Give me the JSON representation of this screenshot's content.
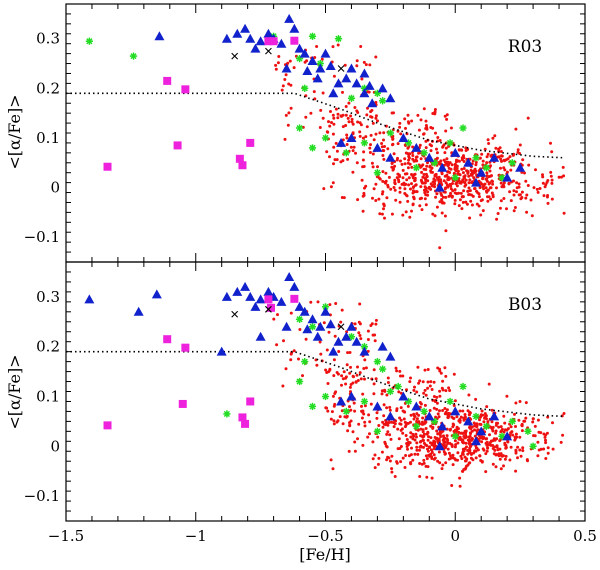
{
  "chart_data": {
    "type": "scatter",
    "xlabel": "[Fe/H]",
    "xlim": [
      -1.5,
      0.5
    ],
    "x_ticks": [
      -1.5,
      -1,
      -0.5,
      0,
      0.5
    ],
    "x_tick_labels": [
      "−1.5",
      "−1",
      "−0.5",
      "0",
      "0.5"
    ],
    "colors": {
      "red": "#ee1111",
      "blue": "#1122cc",
      "green": "#22dd22",
      "magenta": "#ee22dd",
      "black": "#000000"
    },
    "panels": [
      {
        "label": "R03",
        "ylabel": "<[α/Fe]>",
        "ylim": [
          -0.15,
          0.37
        ],
        "y_ticks": [
          -0.1,
          0,
          0.1,
          0.2,
          0.3
        ],
        "y_tick_labels": [
          "−0.1",
          "0",
          "0.1",
          "0.2",
          "0.3"
        ],
        "dotted_line": {
          "x": [
            -1.5,
            -0.62,
            -0.45,
            -0.3,
            -0.1,
            0.1,
            0.3,
            0.42
          ],
          "y": [
            0.19,
            0.19,
            0.16,
            0.13,
            0.095,
            0.075,
            0.063,
            0.06
          ]
        },
        "triangles": [
          [
            -1.14,
            0.305
          ],
          [
            -0.88,
            0.3
          ],
          [
            -0.84,
            0.31
          ],
          [
            -0.81,
            0.32
          ],
          [
            -0.79,
            0.3
          ],
          [
            -0.77,
            0.28
          ],
          [
            -0.75,
            0.295
          ],
          [
            -0.72,
            0.31
          ],
          [
            -0.7,
            0.3
          ],
          [
            -0.67,
            0.29
          ],
          [
            -0.64,
            0.34
          ],
          [
            -0.62,
            0.32
          ],
          [
            -0.6,
            0.28
          ],
          [
            -0.58,
            0.27
          ],
          [
            -0.55,
            0.255
          ],
          [
            -0.52,
            0.24
          ],
          [
            -0.5,
            0.27
          ],
          [
            -0.48,
            0.245
          ],
          [
            -0.45,
            0.21
          ],
          [
            -0.42,
            0.22
          ],
          [
            -0.4,
            0.24
          ],
          [
            -0.38,
            0.21
          ],
          [
            -0.35,
            0.19
          ],
          [
            -0.33,
            0.205
          ],
          [
            -0.32,
            0.17
          ],
          [
            -0.28,
            0.2
          ],
          [
            -0.25,
            0.18
          ],
          [
            -0.65,
            0.24
          ],
          [
            -0.57,
            0.235
          ],
          [
            -0.53,
            0.22
          ],
          [
            -0.47,
            0.19
          ],
          [
            -0.35,
            0.23
          ],
          [
            -0.44,
            0.09
          ],
          [
            -0.4,
            0.1
          ],
          [
            -0.3,
            0.08
          ],
          [
            -0.25,
            0.06
          ],
          [
            -0.2,
            0.1
          ],
          [
            -0.15,
            0.08
          ],
          [
            -0.1,
            0.06
          ],
          [
            -0.05,
            0.04
          ],
          [
            0.0,
            0.07
          ],
          [
            0.05,
            0.05
          ],
          [
            0.1,
            0.03
          ],
          [
            0.15,
            0.06
          ],
          [
            0.2,
            0.02
          ],
          [
            0.25,
            0.04
          ],
          [
            -0.06,
            0.0
          ],
          [
            0.08,
            0.01
          ]
        ],
        "stars": [
          [
            -1.41,
            0.295
          ],
          [
            -1.24,
            0.265
          ],
          [
            -0.7,
            0.305
          ],
          [
            -0.55,
            0.305
          ],
          [
            -0.6,
            0.26
          ],
          [
            -0.58,
            0.2
          ],
          [
            -0.52,
            0.25
          ],
          [
            -0.45,
            0.3
          ],
          [
            -0.4,
            0.18
          ],
          [
            -0.35,
            0.2
          ],
          [
            -0.3,
            0.19
          ],
          [
            -0.28,
            0.175
          ],
          [
            -0.6,
            0.12
          ],
          [
            -0.55,
            0.08
          ],
          [
            -0.5,
            0.1
          ],
          [
            -0.42,
            0.07
          ],
          [
            -0.35,
            0.09
          ],
          [
            -0.25,
            0.11
          ],
          [
            -0.18,
            0.09
          ],
          [
            -0.12,
            0.07
          ],
          [
            -0.08,
            0.05
          ],
          [
            -0.02,
            0.09
          ],
          [
            0.03,
            0.12
          ],
          [
            0.08,
            0.06
          ],
          [
            0.12,
            0.04
          ],
          [
            0.18,
            0.02
          ],
          [
            0.22,
            0.05
          ],
          [
            -0.3,
            0.03
          ],
          [
            0.0,
            0.02
          ],
          [
            -0.15,
            0.04
          ]
        ],
        "squares": [
          [
            -1.34,
            0.042
          ],
          [
            -1.07,
            0.085
          ],
          [
            -1.11,
            0.215
          ],
          [
            -1.04,
            0.198
          ],
          [
            -0.83,
            0.058
          ],
          [
            -0.82,
            0.045
          ],
          [
            -0.79,
            0.09
          ],
          [
            -0.72,
            0.295
          ],
          [
            -0.7,
            0.295
          ],
          [
            -0.62,
            0.296
          ]
        ],
        "crosses": [
          [
            -0.85,
            0.265
          ],
          [
            -0.72,
            0.275
          ],
          [
            -0.44,
            0.24
          ]
        ]
      },
      {
        "label": "B03",
        "ylabel": "<[α/Fe]>",
        "ylim": [
          -0.15,
          0.37
        ],
        "y_ticks": [
          -0.1,
          0,
          0.1,
          0.2,
          0.3
        ],
        "y_tick_labels": [
          "−0.1",
          "0",
          "0.1",
          "0.2",
          "0.3"
        ],
        "dotted_line": {
          "x": [
            -1.5,
            -0.62,
            -0.45,
            -0.3,
            -0.1,
            0.1,
            0.3,
            0.42
          ],
          "y": [
            0.19,
            0.19,
            0.16,
            0.13,
            0.095,
            0.075,
            0.063,
            0.06
          ]
        },
        "triangles": [
          [
            -1.41,
            0.295
          ],
          [
            -1.15,
            0.305
          ],
          [
            -1.22,
            0.27
          ],
          [
            -0.88,
            0.3
          ],
          [
            -0.84,
            0.31
          ],
          [
            -0.81,
            0.32
          ],
          [
            -0.79,
            0.3
          ],
          [
            -0.77,
            0.28
          ],
          [
            -0.75,
            0.295
          ],
          [
            -0.72,
            0.31
          ],
          [
            -0.7,
            0.3
          ],
          [
            -0.67,
            0.29
          ],
          [
            -0.64,
            0.34
          ],
          [
            -0.62,
            0.32
          ],
          [
            -0.6,
            0.28
          ],
          [
            -0.58,
            0.27
          ],
          [
            -0.55,
            0.255
          ],
          [
            -0.52,
            0.24
          ],
          [
            -0.5,
            0.27
          ],
          [
            -0.48,
            0.245
          ],
          [
            -0.45,
            0.21
          ],
          [
            -0.42,
            0.22
          ],
          [
            -0.4,
            0.24
          ],
          [
            -0.38,
            0.21
          ],
          [
            -0.35,
            0.19
          ],
          [
            -0.28,
            0.2
          ],
          [
            -0.25,
            0.18
          ],
          [
            -0.65,
            0.24
          ],
          [
            -0.57,
            0.235
          ],
          [
            -0.53,
            0.22
          ],
          [
            -0.47,
            0.19
          ],
          [
            -0.9,
            0.19
          ],
          [
            -0.75,
            0.22
          ],
          [
            -0.44,
            0.09
          ],
          [
            -0.4,
            0.1
          ],
          [
            -0.3,
            0.08
          ],
          [
            -0.25,
            0.06
          ],
          [
            -0.2,
            0.1
          ],
          [
            -0.15,
            0.08
          ],
          [
            -0.1,
            0.06
          ],
          [
            -0.05,
            0.04
          ],
          [
            0.0,
            0.07
          ],
          [
            0.05,
            0.05
          ],
          [
            0.1,
            0.03
          ],
          [
            0.15,
            0.06
          ],
          [
            0.2,
            0.02
          ],
          [
            -0.06,
            0.0
          ],
          [
            0.08,
            0.01
          ]
        ],
        "stars": [
          [
            -0.88,
            0.065
          ],
          [
            -0.6,
            0.255
          ],
          [
            -0.58,
            0.17
          ],
          [
            -0.55,
            0.24
          ],
          [
            -0.5,
            0.28
          ],
          [
            -0.4,
            0.22
          ],
          [
            -0.35,
            0.2
          ],
          [
            -0.3,
            0.17
          ],
          [
            -0.28,
            0.155
          ],
          [
            -0.6,
            0.13
          ],
          [
            -0.55,
            0.08
          ],
          [
            -0.5,
            0.1
          ],
          [
            -0.42,
            0.07
          ],
          [
            -0.35,
            0.09
          ],
          [
            -0.25,
            0.11
          ],
          [
            -0.18,
            0.09
          ],
          [
            -0.12,
            0.07
          ],
          [
            -0.08,
            0.05
          ],
          [
            -0.02,
            0.09
          ],
          [
            0.03,
            0.12
          ],
          [
            0.08,
            0.06
          ],
          [
            0.12,
            0.04
          ],
          [
            0.18,
            0.02
          ],
          [
            0.22,
            0.05
          ],
          [
            -0.3,
            0.03
          ],
          [
            0.0,
            0.02
          ],
          [
            -0.15,
            0.04
          ],
          [
            0.3,
            0.0
          ],
          [
            0.28,
            0.03
          ],
          [
            -0.22,
            0.12
          ]
        ],
        "squares": [
          [
            -1.34,
            0.042
          ],
          [
            -1.05,
            0.085
          ],
          [
            -1.11,
            0.215
          ],
          [
            -1.04,
            0.198
          ],
          [
            -0.82,
            0.058
          ],
          [
            -0.81,
            0.045
          ],
          [
            -0.79,
            0.09
          ],
          [
            -0.72,
            0.295
          ],
          [
            -0.71,
            0.278
          ],
          [
            -0.62,
            0.296
          ]
        ],
        "crosses": [
          [
            -0.85,
            0.265
          ],
          [
            -0.72,
            0.275
          ],
          [
            -0.44,
            0.24
          ]
        ]
      }
    ],
    "dots_cloud": {
      "description_count": 900,
      "seed": 12345,
      "x_range": [
        -0.8,
        0.42
      ],
      "center_x": 0.0,
      "center_y": 0.02
    }
  }
}
